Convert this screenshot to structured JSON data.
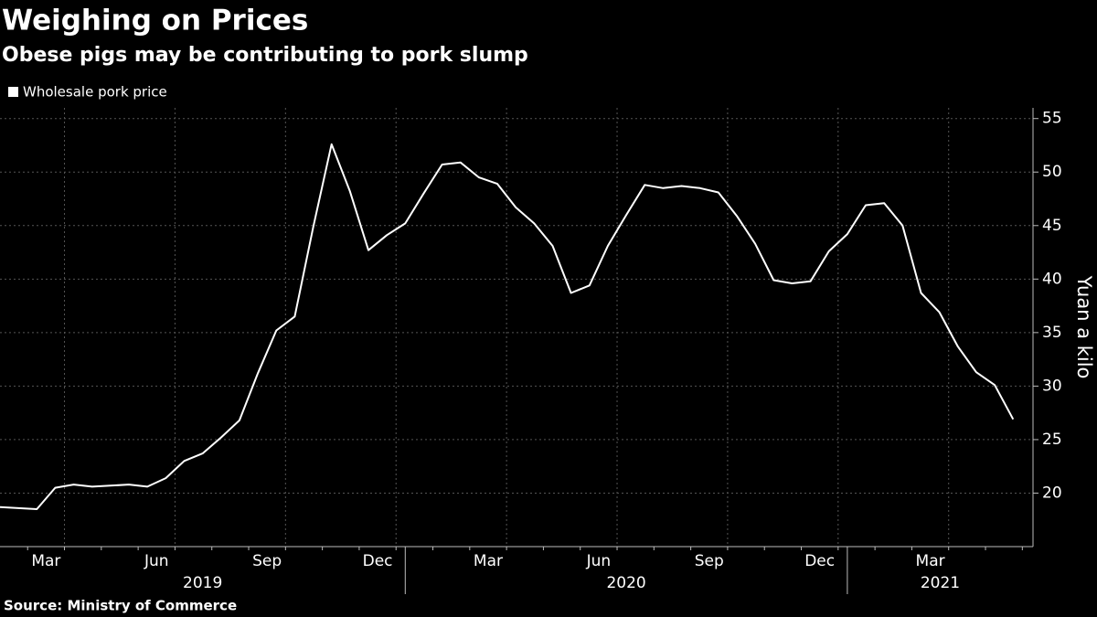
{
  "chart_data": {
    "type": "line",
    "title": "Weighing on Prices",
    "subtitle": "Obese pigs may be contributing to pork slump",
    "y_label": "Yuan a kilo",
    "source": "Source: Ministry of Commerce",
    "categories": [
      null,
      null,
      "Mar",
      null,
      null,
      null,
      null,
      null,
      "Jun",
      null,
      null,
      null,
      null,
      null,
      "Sep",
      null,
      null,
      null,
      null,
      null,
      "Dec",
      null,
      null,
      null,
      null,
      null,
      "Mar",
      null,
      null,
      null,
      null,
      null,
      "Jun",
      null,
      null,
      null,
      null,
      null,
      "Sep",
      null,
      null,
      null,
      null,
      null,
      "Dec",
      null,
      null,
      null,
      null,
      null,
      "Mar",
      null,
      null,
      null,
      null,
      null
    ],
    "year_labels": [
      "2019",
      "2020",
      "2021"
    ],
    "series": [
      {
        "name": "Wholesale pork price",
        "color": "#ffffff",
        "values": [
          18.7,
          18.6,
          18.5,
          20.5,
          20.8,
          20.6,
          20.7,
          20.8,
          20.6,
          21.4,
          23.0,
          23.7,
          25.2,
          26.8,
          31.2,
          35.2,
          36.5,
          44.8,
          52.6,
          48.2,
          42.7,
          44.1,
          45.2,
          48.0,
          50.7,
          50.9,
          49.5,
          48.9,
          46.7,
          45.2,
          43.1,
          38.7,
          39.4,
          43.1,
          46.0,
          48.8,
          48.5,
          48.7,
          48.5,
          48.1,
          45.9,
          43.3,
          39.9,
          39.6,
          39.8,
          42.6,
          44.2,
          46.9,
          47.1,
          45.0,
          38.7,
          36.9,
          33.7,
          31.3,
          30.1,
          26.9
        ]
      }
    ],
    "ylim": [
      15,
      56
    ],
    "yticks": [
      20,
      25,
      30,
      35,
      40,
      45,
      50,
      55
    ],
    "grid": true,
    "y_axis_side": "right",
    "legend": "top-left"
  }
}
